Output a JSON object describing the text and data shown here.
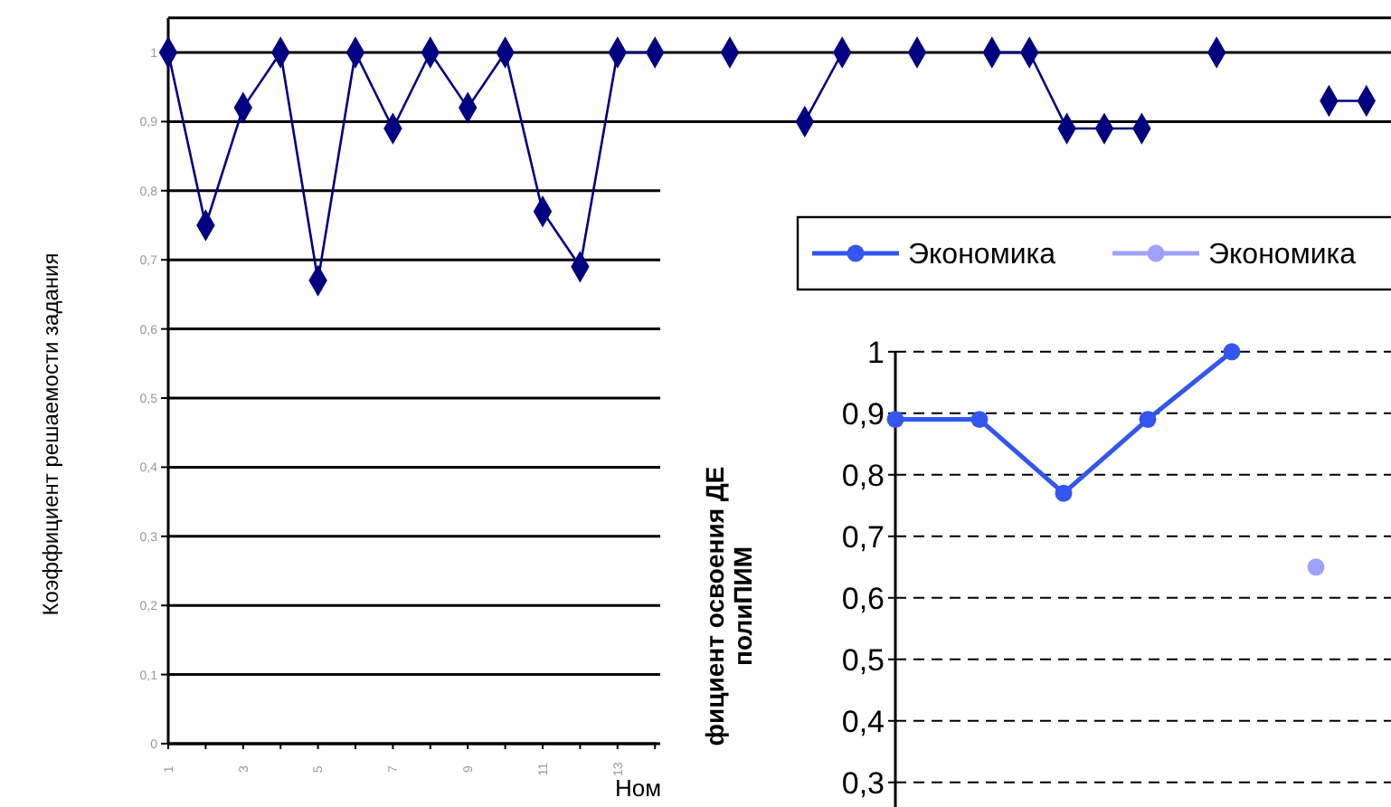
{
  "chart_data": [
    {
      "type": "line",
      "ylabel": "Коэффициент решаемости задания",
      "xlabel": "Ном",
      "categories": [
        "1",
        null,
        "3",
        null,
        "5",
        null,
        "7",
        null,
        "9",
        null,
        "11",
        null,
        "13",
        null,
        null,
        null,
        null,
        null,
        null,
        null,
        null,
        null,
        null,
        null,
        null,
        null,
        null,
        null,
        null,
        null,
        null,
        null,
        null
      ],
      "series": [
        {
          "color": "#000080",
          "values": [
            1,
            0.75,
            0.92,
            1,
            0.67,
            1,
            0.89,
            1,
            0.92,
            1,
            0.77,
            0.69,
            1,
            1,
            null,
            1,
            null,
            0.9,
            1,
            null,
            1,
            null,
            1,
            1,
            0.89,
            0.89,
            0.89,
            null,
            1,
            null,
            null,
            0.93,
            0.93
          ]
        }
      ],
      "ylim": [
        0,
        1.05
      ],
      "yticks": [
        {
          "value": 0,
          "label": "0"
        },
        {
          "value": 0.1,
          "label": "0,1"
        },
        {
          "value": 0.2,
          "label": "0,2"
        },
        {
          "value": 0.3,
          "label": "0,3"
        },
        {
          "value": 0.4,
          "label": "0,4"
        },
        {
          "value": 0.5,
          "label": "0,5"
        },
        {
          "value": 0.6,
          "label": "0,6"
        },
        {
          "value": 0.7,
          "label": "0,7"
        },
        {
          "value": 0.8,
          "label": "0,8"
        },
        {
          "value": 0.9,
          "label": "0,9"
        },
        {
          "value": 1,
          "label": "1"
        }
      ],
      "grid": "y",
      "marker": "diamond",
      "legend": false
    },
    {
      "type": "line",
      "ylabel": "фициент освоения ДЕ полиПИМ",
      "categories": [
        null,
        null,
        null,
        null,
        null,
        null
      ],
      "series": [
        {
          "name": "Экономика",
          "color": "#3355f0",
          "values": [
            0.89,
            0.89,
            0.77,
            0.89,
            1,
            null
          ]
        },
        {
          "name": "Экономика",
          "color": "#a0a0ff",
          "values": [
            null,
            null,
            null,
            null,
            null,
            0.65
          ]
        }
      ],
      "ylim": [
        0.26,
        1
      ],
      "yticks": [
        {
          "value": 0.3,
          "label": "0,3"
        },
        {
          "value": 0.4,
          "label": "0,4"
        },
        {
          "value": 0.5,
          "label": "0,5"
        },
        {
          "value": 0.6,
          "label": "0,6"
        },
        {
          "value": 0.7,
          "label": "0,7"
        },
        {
          "value": 0.8,
          "label": "0,8"
        },
        {
          "value": 0.9,
          "label": "0,9"
        },
        {
          "value": 1,
          "label": "1"
        }
      ],
      "grid": "y",
      "marker": "circle",
      "legend": "top",
      "tick_labels": "y"
    }
  ]
}
